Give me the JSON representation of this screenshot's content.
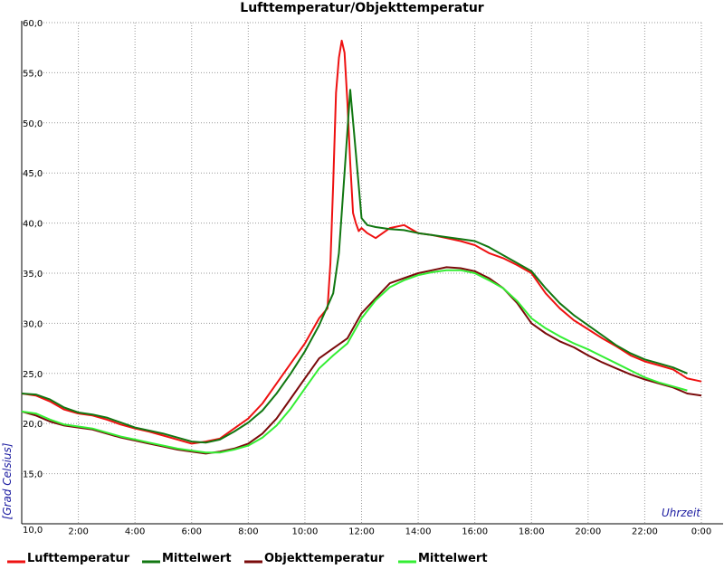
{
  "chart_data": {
    "type": "line",
    "title": "Lufttemperatur/Objekttemperatur",
    "xlabel": "Uhrzeit",
    "ylabel": "[Grad Celsius]",
    "xlim": [
      0,
      24
    ],
    "ylim": [
      10,
      60
    ],
    "x_ticks": [
      {
        "x": 0,
        "label": ""
      },
      {
        "x": 2,
        "label": "2:00"
      },
      {
        "x": 4,
        "label": "4:00"
      },
      {
        "x": 6,
        "label": "6:00"
      },
      {
        "x": 8,
        "label": "8:00"
      },
      {
        "x": 10,
        "label": "10:00"
      },
      {
        "x": 12,
        "label": "12:00"
      },
      {
        "x": 14,
        "label": "14:00"
      },
      {
        "x": 16,
        "label": "16:00"
      },
      {
        "x": 18,
        "label": "18:00"
      },
      {
        "x": 20,
        "label": "20:00"
      },
      {
        "x": 22,
        "label": "22:00"
      },
      {
        "x": 24,
        "label": "0:00"
      }
    ],
    "y_ticks": [
      {
        "y": 10,
        "label": "10,0"
      },
      {
        "y": 15,
        "label": "15,0"
      },
      {
        "y": 20,
        "label": "20,0"
      },
      {
        "y": 25,
        "label": "25,0"
      },
      {
        "y": 30,
        "label": "30,0"
      },
      {
        "y": 35,
        "label": "35,0"
      },
      {
        "y": 40,
        "label": "40,0"
      },
      {
        "y": 45,
        "label": "45,0"
      },
      {
        "y": 50,
        "label": "50,0"
      },
      {
        "y": 55,
        "label": "55,0"
      },
      {
        "y": 60,
        "label": "60,0"
      }
    ],
    "grid": true,
    "legend_position": "bottom",
    "series": [
      {
        "name": "Lufttemperatur",
        "color": "#ee1111",
        "x": [
          0,
          0.5,
          1,
          1.5,
          2,
          2.5,
          3,
          3.5,
          4,
          4.5,
          5,
          5.5,
          6,
          6.5,
          7,
          7.5,
          8,
          8.5,
          9,
          9.5,
          10,
          10.5,
          10.8,
          10.9,
          11.0,
          11.1,
          11.2,
          11.3,
          11.4,
          11.5,
          11.6,
          11.7,
          11.8,
          11.9,
          12.0,
          12.2,
          12.5,
          13,
          13.5,
          14,
          14.5,
          15,
          15.5,
          16,
          16.5,
          17,
          17.5,
          18,
          18.5,
          19,
          19.5,
          20,
          20.5,
          21,
          21.5,
          22,
          22.5,
          23,
          23.5,
          24
        ],
        "y": [
          23.0,
          22.8,
          22.2,
          21.4,
          21.0,
          20.8,
          20.4,
          19.9,
          19.5,
          19.2,
          18.8,
          18.4,
          18.0,
          18.2,
          18.5,
          19.5,
          20.5,
          22.0,
          24.0,
          26.0,
          28.0,
          30.5,
          31.5,
          36.0,
          44.0,
          53.0,
          56.5,
          58.2,
          57.0,
          52.0,
          46.0,
          41.0,
          40.0,
          39.2,
          39.5,
          39.0,
          38.5,
          39.5,
          39.8,
          39.0,
          38.8,
          38.5,
          38.2,
          37.8,
          37.0,
          36.5,
          35.8,
          35.0,
          33.0,
          31.5,
          30.3,
          29.4,
          28.5,
          27.7,
          26.8,
          26.2,
          25.8,
          25.4,
          24.5,
          24.2
        ]
      },
      {
        "name": "Mittelwert",
        "color": "#117711",
        "x": [
          0,
          0.5,
          1,
          1.5,
          2,
          2.5,
          3,
          3.5,
          4,
          4.5,
          5,
          5.5,
          6,
          6.5,
          7,
          7.5,
          8,
          8.5,
          9,
          9.5,
          10,
          10.5,
          11,
          11.2,
          11.4,
          11.6,
          11.8,
          12.0,
          12.2,
          12.5,
          13,
          13.5,
          14,
          14.5,
          15,
          15.5,
          16,
          16.5,
          17,
          17.5,
          18,
          18.5,
          19,
          19.5,
          20,
          20.5,
          21,
          21.5,
          22,
          22.5,
          23,
          23.5
        ],
        "y": [
          23.0,
          22.9,
          22.4,
          21.6,
          21.1,
          20.9,
          20.6,
          20.1,
          19.6,
          19.3,
          19.0,
          18.6,
          18.2,
          18.1,
          18.4,
          19.2,
          20.1,
          21.3,
          23.0,
          25.0,
          27.2,
          29.8,
          33.0,
          37.0,
          45.0,
          53.3,
          47.0,
          40.5,
          39.8,
          39.6,
          39.4,
          39.3,
          39.0,
          38.8,
          38.6,
          38.4,
          38.2,
          37.6,
          36.8,
          36.0,
          35.2,
          33.5,
          32.0,
          30.8,
          29.8,
          28.8,
          27.8,
          27.0,
          26.4,
          26.0,
          25.6,
          25.0
        ]
      },
      {
        "name": "Objekttemperatur",
        "color": "#7a0a0a",
        "x": [
          0,
          0.5,
          1,
          1.5,
          2,
          2.5,
          3,
          3.5,
          4,
          4.5,
          5,
          5.5,
          6,
          6.5,
          7,
          7.5,
          8,
          8.5,
          9,
          9.5,
          10,
          10.5,
          11,
          11.5,
          12,
          12.5,
          13,
          13.5,
          14,
          14.5,
          15,
          15.5,
          16,
          16.5,
          17,
          17.5,
          18,
          18.5,
          19,
          19.5,
          20,
          20.5,
          21,
          21.5,
          22,
          22.5,
          23,
          23.5,
          24
        ],
        "y": [
          21.2,
          20.8,
          20.2,
          19.8,
          19.6,
          19.4,
          19.0,
          18.6,
          18.3,
          18.0,
          17.7,
          17.4,
          17.2,
          17.0,
          17.2,
          17.5,
          18.0,
          19.0,
          20.5,
          22.5,
          24.5,
          26.5,
          27.5,
          28.5,
          31.0,
          32.5,
          34.0,
          34.5,
          35.0,
          35.3,
          35.6,
          35.5,
          35.2,
          34.5,
          33.5,
          32.0,
          30.0,
          29.0,
          28.2,
          27.6,
          26.8,
          26.1,
          25.5,
          24.9,
          24.4,
          24.0,
          23.6,
          23.0,
          22.8
        ]
      },
      {
        "name": "Mittelwert",
        "color": "#33ee33",
        "x": [
          0,
          0.5,
          1,
          1.5,
          2,
          2.5,
          3,
          3.5,
          4,
          4.5,
          5,
          5.5,
          6,
          6.5,
          7,
          7.5,
          8,
          8.5,
          9,
          9.5,
          10,
          10.5,
          11,
          11.5,
          12,
          12.5,
          13,
          13.5,
          14,
          14.5,
          15,
          15.5,
          16,
          16.5,
          17,
          17.5,
          18,
          18.5,
          19,
          19.5,
          20,
          20.5,
          21,
          21.5,
          22,
          22.5,
          23,
          23.5
        ],
        "y": [
          21.2,
          21.0,
          20.4,
          19.9,
          19.7,
          19.5,
          19.1,
          18.7,
          18.4,
          18.1,
          17.8,
          17.5,
          17.3,
          17.1,
          17.1,
          17.4,
          17.8,
          18.6,
          19.8,
          21.5,
          23.5,
          25.5,
          26.8,
          28.0,
          30.5,
          32.3,
          33.6,
          34.3,
          34.8,
          35.1,
          35.3,
          35.3,
          35.0,
          34.3,
          33.5,
          32.2,
          30.5,
          29.5,
          28.7,
          28.0,
          27.4,
          26.7,
          26.0,
          25.3,
          24.6,
          24.1,
          23.7,
          23.3
        ]
      }
    ]
  }
}
